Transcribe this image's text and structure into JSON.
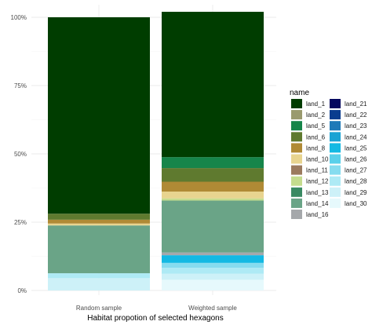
{
  "chart_data": {
    "type": "bar",
    "stacked": true,
    "title": "",
    "xlabel": "Habitat propotion of selected hexagons",
    "ylabel": "",
    "ylim": [
      0,
      1
    ],
    "y_ticks": [
      {
        "value": 0,
        "label": "0%"
      },
      {
        "value": 0.25,
        "label": "25%"
      },
      {
        "value": 0.5,
        "label": "50%"
      },
      {
        "value": 0.75,
        "label": "75%"
      },
      {
        "value": 1,
        "label": "100%"
      }
    ],
    "categories": [
      "Random sample",
      "Weighted sample"
    ],
    "legend_title": "name",
    "legend_position": "right",
    "grid": true,
    "series": [
      {
        "name": "land_1",
        "color": "#003d00",
        "values": [
          0.719,
          0.532
        ]
      },
      {
        "name": "land_2",
        "color": "#9a9a6e",
        "values": [
          0.0,
          0.0
        ]
      },
      {
        "name": "land_5",
        "color": "#16854a",
        "values": [
          0.0,
          0.04
        ]
      },
      {
        "name": "land_6",
        "color": "#5f7a2f",
        "values": [
          0.022,
          0.05
        ]
      },
      {
        "name": "land_8",
        "color": "#b08a35",
        "values": [
          0.014,
          0.036
        ]
      },
      {
        "name": "land_10",
        "color": "#e8d48f",
        "values": [
          0.007,
          0.025
        ]
      },
      {
        "name": "land_11",
        "color": "#9b7a5e",
        "values": [
          0.0,
          0.0
        ]
      },
      {
        "name": "land_12",
        "color": "#c5dc8e",
        "values": [
          0.0,
          0.008
        ]
      },
      {
        "name": "land_13",
        "color": "#3a8a63",
        "values": [
          0.0,
          0.0
        ]
      },
      {
        "name": "land_14",
        "color": "#6aa487",
        "values": [
          0.175,
          0.19
        ]
      },
      {
        "name": "land_16",
        "color": "#a5a8ab",
        "values": [
          0.0,
          0.01
        ]
      },
      {
        "name": "land_21",
        "color": "#04075f",
        "values": [
          0.0,
          0.0
        ]
      },
      {
        "name": "land_22",
        "color": "#0a3d8f",
        "values": [
          0.0,
          0.0
        ]
      },
      {
        "name": "land_23",
        "color": "#1f7ab8",
        "values": [
          0.0,
          0.0
        ]
      },
      {
        "name": "land_24",
        "color": "#1aa3d4",
        "values": [
          0.0,
          0.0
        ]
      },
      {
        "name": "land_25",
        "color": "#13b9e3",
        "values": [
          0.0,
          0.028
        ]
      },
      {
        "name": "land_26",
        "color": "#59d0ea",
        "values": [
          0.0,
          0.0
        ]
      },
      {
        "name": "land_27",
        "color": "#86dcef",
        "values": [
          0.0,
          0.018
        ]
      },
      {
        "name": "land_28",
        "color": "#aeeaf5",
        "values": [
          0.018,
          0.022
        ]
      },
      {
        "name": "land_29",
        "color": "#cdf1f8",
        "values": [
          0.045,
          0.022
        ]
      },
      {
        "name": "land_30",
        "color": "#e6f9fc",
        "values": [
          0.0,
          0.039
        ]
      }
    ]
  }
}
